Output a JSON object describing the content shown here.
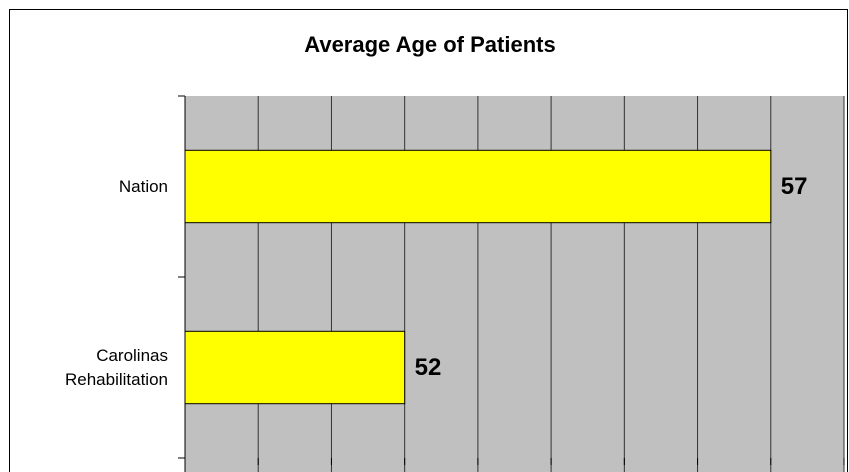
{
  "chart_data": {
    "type": "hbar",
    "title": "Average Age of Patients",
    "categories": [
      "Nation",
      "Carolinas Rehabilitation"
    ],
    "values": [
      57,
      52
    ],
    "color": "#ffff00",
    "xlim": [
      49,
      58
    ],
    "xticks": [
      49,
      50,
      51,
      52,
      53,
      54,
      55,
      56,
      57,
      58
    ],
    "grid": true,
    "plot_background": "#c0c0c0"
  }
}
